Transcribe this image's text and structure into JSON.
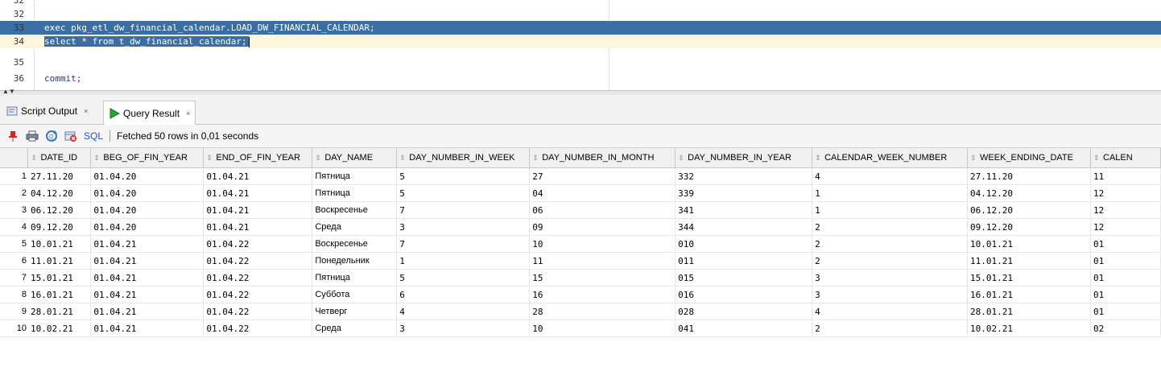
{
  "editor": {
    "lines": [
      {
        "num": "32",
        "code": ""
      },
      {
        "num": "33",
        "code": "exec pkg_etl_dw_financial_calendar.LOAD_DW_FINANCIAL_CALENDAR;"
      },
      {
        "num": "34",
        "code": "select * from t_dw_financial_calendar;"
      },
      {
        "num": "35",
        "code": ""
      },
      {
        "num": "36",
        "code": "commit;"
      }
    ]
  },
  "tabs": [
    {
      "label": "Script Output",
      "close": "×"
    },
    {
      "label": "Query Result",
      "close": "×"
    }
  ],
  "toolbar": {
    "sql_label": "SQL",
    "status": "Fetched 50 rows in 0,01 seconds"
  },
  "grid": {
    "columns": [
      "DATE_ID",
      "BEG_OF_FIN_YEAR",
      "END_OF_FIN_YEAR",
      "DAY_NAME",
      "DAY_NUMBER_IN_WEEK",
      "DAY_NUMBER_IN_MONTH",
      "DAY_NUMBER_IN_YEAR",
      "CALENDAR_WEEK_NUMBER",
      "WEEK_ENDING_DATE",
      "CALEN"
    ],
    "rows": [
      [
        "1",
        "27.11.20",
        "01.04.20",
        "01.04.21",
        "Пятница",
        "5",
        "27",
        "332",
        "4",
        "27.11.20",
        "11"
      ],
      [
        "2",
        "04.12.20",
        "01.04.20",
        "01.04.21",
        "Пятница",
        "5",
        "04",
        "339",
        "1",
        "04.12.20",
        "12"
      ],
      [
        "3",
        "06.12.20",
        "01.04.20",
        "01.04.21",
        "Воскресенье",
        "7",
        "06",
        "341",
        "1",
        "06.12.20",
        "12"
      ],
      [
        "4",
        "09.12.20",
        "01.04.20",
        "01.04.21",
        "Среда",
        "3",
        "09",
        "344",
        "2",
        "09.12.20",
        "12"
      ],
      [
        "5",
        "10.01.21",
        "01.04.21",
        "01.04.22",
        "Воскресенье",
        "7",
        "10",
        "010",
        "2",
        "10.01.21",
        "01"
      ],
      [
        "6",
        "11.01.21",
        "01.04.21",
        "01.04.22",
        "Понедельник",
        "1",
        "11",
        "011",
        "2",
        "11.01.21",
        "01"
      ],
      [
        "7",
        "15.01.21",
        "01.04.21",
        "01.04.22",
        "Пятница",
        "5",
        "15",
        "015",
        "3",
        "15.01.21",
        "01"
      ],
      [
        "8",
        "16.01.21",
        "01.04.21",
        "01.04.22",
        "Суббота",
        "6",
        "16",
        "016",
        "3",
        "16.01.21",
        "01"
      ],
      [
        "9",
        "28.01.21",
        "01.04.21",
        "01.04.22",
        "Четверг",
        "4",
        "28",
        "028",
        "4",
        "28.01.21",
        "01"
      ],
      [
        "10",
        "10.02.21",
        "01.04.21",
        "01.04.22",
        "Среда",
        "3",
        "10",
        "041",
        "2",
        "10.02.21",
        "02"
      ]
    ]
  },
  "colors": {
    "selection": "#3b6ea5",
    "current_line": "#fdf7e1",
    "sql_link": "#1f55c9",
    "run_green": "#27a52a"
  }
}
